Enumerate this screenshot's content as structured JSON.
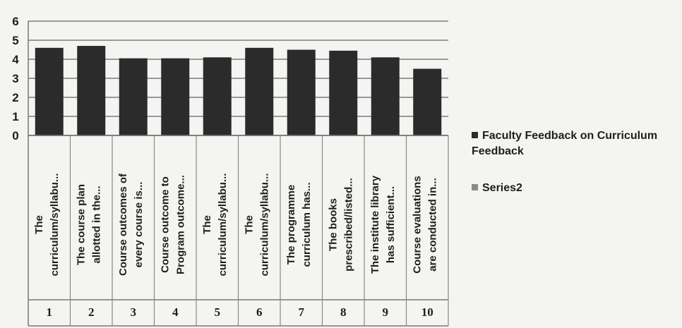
{
  "chart_data": {
    "type": "bar",
    "categories": [
      [
        "The",
        "curriculum/syllabu..."
      ],
      [
        "The course plan",
        "allotted in the..."
      ],
      [
        "Course outcomes of",
        "every course is..."
      ],
      [
        "Course outcome to",
        "Program outcome..."
      ],
      [
        "The",
        "curriculum/syllabu..."
      ],
      [
        "The",
        "curriculum/syllabu..."
      ],
      [
        "The programme",
        "curriculum has..."
      ],
      [
        "The books",
        "prescribed/listed..."
      ],
      [
        "The institute library",
        "has sufficient..."
      ],
      [
        "Course evaluations",
        "are conducted in..."
      ]
    ],
    "category_numbers": [
      1,
      2,
      3,
      4,
      5,
      6,
      7,
      8,
      9,
      10
    ],
    "series": [
      {
        "name": "Faculty Feedback on Curriculum Feedback",
        "color": "#2b2b2b",
        "values": [
          4.6,
          4.7,
          4.05,
          4.05,
          4.1,
          4.6,
          4.5,
          4.45,
          4.1,
          3.5
        ]
      },
      {
        "name": "Series2",
        "color": "#8a8a8a",
        "values": [
          null,
          null,
          null,
          null,
          null,
          null,
          null,
          null,
          null,
          null
        ]
      }
    ],
    "ylim": [
      0,
      6
    ],
    "yticks": [
      0,
      1,
      2,
      3,
      4,
      5,
      6
    ],
    "grid": true,
    "legend": "right"
  }
}
